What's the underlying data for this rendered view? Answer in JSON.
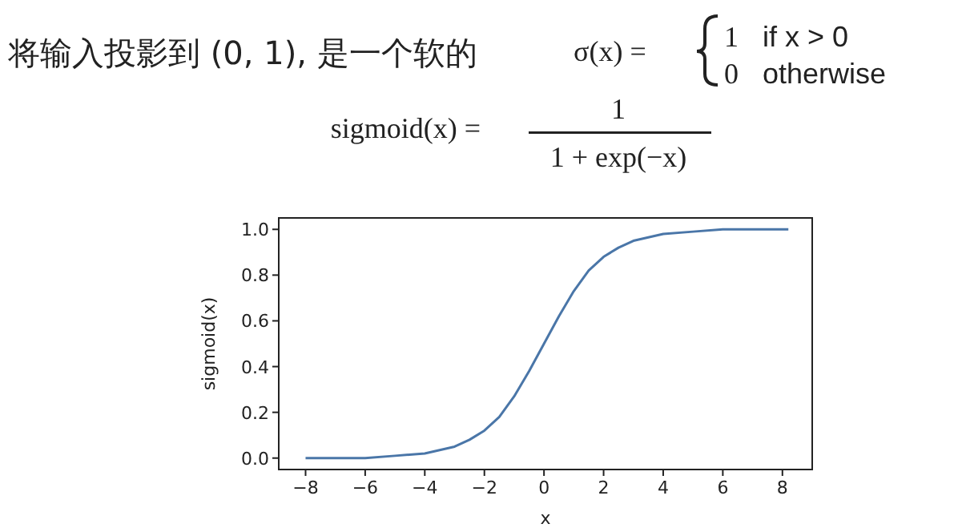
{
  "chart_data": {
    "type": "line",
    "title": "将输入投影到 (0, 1), 是一个软的",
    "xlabel": "x",
    "ylabel": "sigmoid(x)",
    "annotations": [
      "σ(x) =",
      "1",
      "if x > 0",
      "0",
      "otherwise",
      "sigmoid(x) =",
      "1",
      "1 + exp(−x)"
    ],
    "x": [
      -8,
      -7,
      -6,
      -5,
      -4,
      -3,
      -2.5,
      -2,
      -1.5,
      -1,
      -0.5,
      0,
      0.5,
      1,
      1.5,
      2,
      2.5,
      3,
      4,
      5,
      6,
      7,
      8.2
    ],
    "series": [
      {
        "color": "#4a76a8",
        "values": [
          0,
          0,
          0,
          0.01,
          0.02,
          0.05,
          0.08,
          0.12,
          0.18,
          0.27,
          0.38,
          0.5,
          0.62,
          0.73,
          0.82,
          0.88,
          0.92,
          0.95,
          0.98,
          0.99,
          1,
          1,
          1
        ]
      }
    ],
    "xlim": [
      -8.9,
      9
    ],
    "ylim": [
      -0.05,
      1.05
    ],
    "xticks": [
      -8,
      -6,
      -4,
      -2,
      0,
      2,
      4,
      6,
      8
    ],
    "yticks": [
      {
        "value": 0,
        "label": "0.0"
      },
      {
        "value": 0.2,
        "label": "0.2"
      },
      {
        "value": 0.4,
        "label": "0.4"
      },
      {
        "value": 0.6,
        "label": "0.6"
      },
      {
        "value": 0.8,
        "label": "0.8"
      },
      {
        "value": 1,
        "label": "1.0"
      }
    ],
    "grid": false,
    "marker": "none",
    "line_style": "solid"
  }
}
